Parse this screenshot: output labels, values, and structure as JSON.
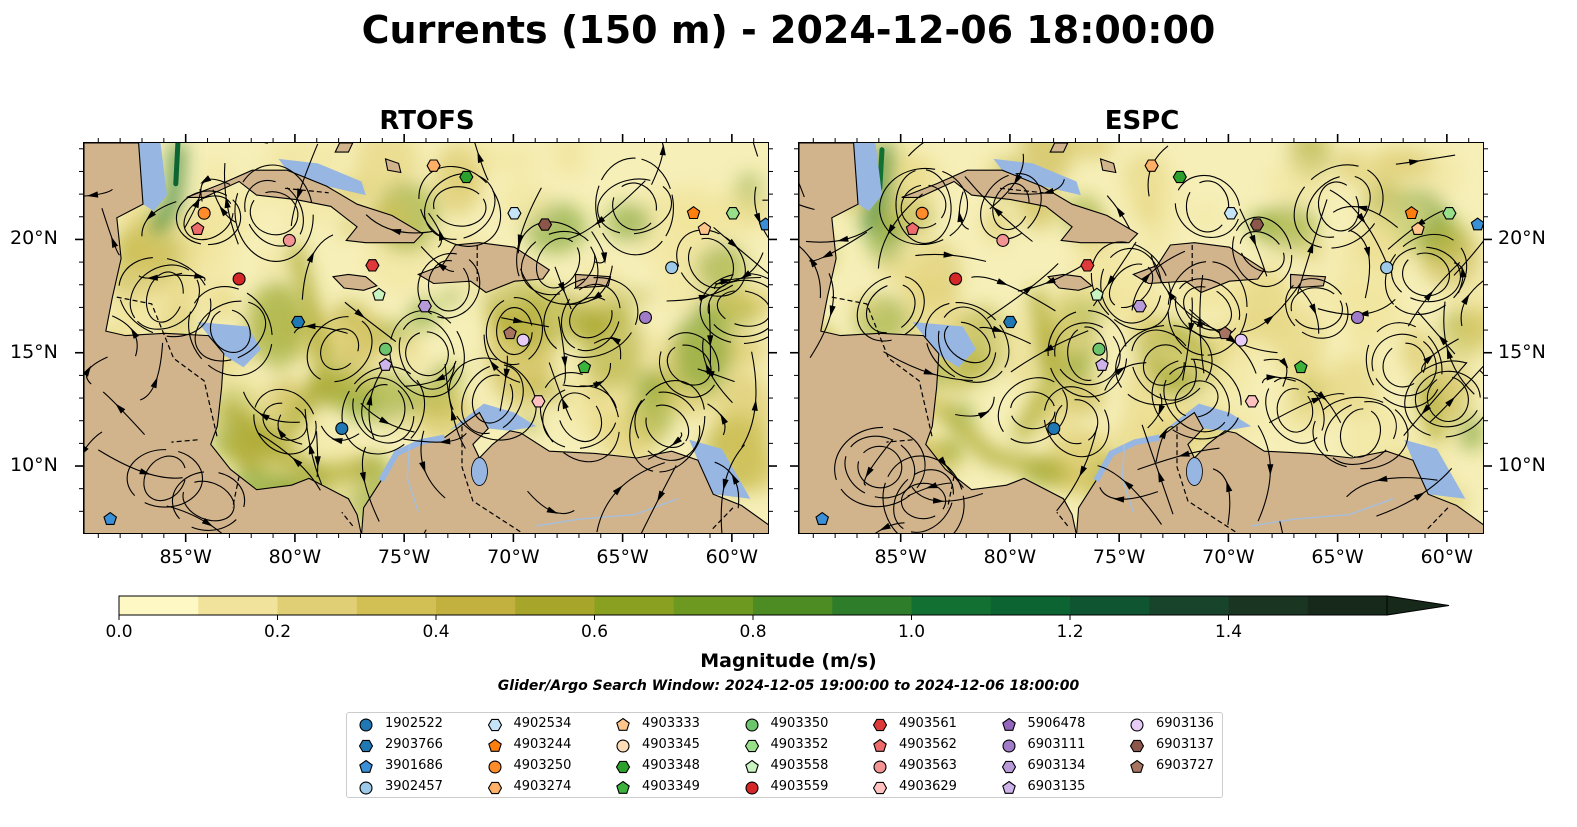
{
  "title": "Currents (150 m) - 2024-12-06 18:00:00",
  "panels": [
    {
      "title": "RTOFS"
    },
    {
      "title": "ESPC"
    }
  ],
  "axes": {
    "lon_ticks": [
      "85°W",
      "80°W",
      "75°W",
      "70°W",
      "65°W",
      "60°W"
    ],
    "lat_ticks": [
      "20°N",
      "15°N",
      "10°N"
    ],
    "lon_range": [
      -89.7,
      -58.3
    ],
    "lat_range": [
      7.0,
      24.3
    ]
  },
  "colorbar": {
    "title": "Magnitude (m/s)",
    "ticks": [
      "0.0",
      "0.2",
      "0.4",
      "0.6",
      "0.8",
      "1.0",
      "1.2",
      "1.4"
    ],
    "range": [
      0,
      1.6
    ],
    "extend": "max",
    "colors": [
      "#fdf8c4",
      "#f1e39b",
      "#e1cf75",
      "#d3c055",
      "#c3b13f",
      "#a7a62a",
      "#8aa020",
      "#6d9920",
      "#4d8c22",
      "#2e7d2a",
      "#137033",
      "#0c6433",
      "#0f5531",
      "#18442b",
      "#1a3622",
      "#16291a"
    ]
  },
  "colors": {
    "ocean_low": "#f6efb8",
    "land": "#d2b48c",
    "shallow_water": "#97b6e1"
  },
  "search_window": "Glider/Argo Search Window: 2024-12-05 19:00:00 to 2024-12-06 18:00:00",
  "legend": [
    {
      "id": "1902522",
      "color": "#1f77b4",
      "shape": "circle"
    },
    {
      "id": "2903766",
      "color": "#1f77b4",
      "shape": "hexagon"
    },
    {
      "id": "3901686",
      "color": "#3a8fd6",
      "shape": "pentagon"
    },
    {
      "id": "3902457",
      "color": "#9ecae9",
      "shape": "circle"
    },
    {
      "id": "4902534",
      "color": "#c6e4f8",
      "shape": "hexagon"
    },
    {
      "id": "4903244",
      "color": "#ff7f0e",
      "shape": "pentagon"
    },
    {
      "id": "4903250",
      "color": "#ff8c2a",
      "shape": "circle"
    },
    {
      "id": "4903274",
      "color": "#ffb067",
      "shape": "hexagon"
    },
    {
      "id": "4903333",
      "color": "#ffc58a",
      "shape": "pentagon"
    },
    {
      "id": "4903345",
      "color": "#ffdcb8",
      "shape": "circle"
    },
    {
      "id": "4903348",
      "color": "#2ca02c",
      "shape": "hexagon"
    },
    {
      "id": "4903349",
      "color": "#3cb43c",
      "shape": "pentagon"
    },
    {
      "id": "4903350",
      "color": "#6cc46c",
      "shape": "circle"
    },
    {
      "id": "4903352",
      "color": "#98df8a",
      "shape": "hexagon"
    },
    {
      "id": "4903558",
      "color": "#c9f3c0",
      "shape": "pentagon"
    },
    {
      "id": "4903559",
      "color": "#d62728",
      "shape": "circle"
    },
    {
      "id": "4903561",
      "color": "#e0393a",
      "shape": "hexagon"
    },
    {
      "id": "4903562",
      "color": "#ee6b6b",
      "shape": "pentagon"
    },
    {
      "id": "4903563",
      "color": "#f39494",
      "shape": "circle"
    },
    {
      "id": "4903629",
      "color": "#ffc0c0",
      "shape": "hexagon"
    },
    {
      "id": "5906478",
      "color": "#9467bd",
      "shape": "pentagon"
    },
    {
      "id": "6903111",
      "color": "#a07cc8",
      "shape": "circle"
    },
    {
      "id": "6903134",
      "color": "#b89ad8",
      "shape": "hexagon"
    },
    {
      "id": "6903135",
      "color": "#cdb3ea",
      "shape": "pentagon"
    },
    {
      "id": "6903136",
      "color": "#e6ccf7",
      "shape": "circle"
    },
    {
      "id": "6903137",
      "color": "#8c564b",
      "shape": "hexagon"
    },
    {
      "id": "6903727",
      "color": "#a87462",
      "shape": "pentagon"
    }
  ],
  "floats": [
    {
      "id": "3901686",
      "lon": -88.5,
      "lat": 7.7
    },
    {
      "id": "4903562",
      "lon": -84.5,
      "lat": 20.5
    },
    {
      "id": "4903250",
      "lon": -84.2,
      "lat": 21.2
    },
    {
      "id": "4903563",
      "lon": -80.3,
      "lat": 20.0
    },
    {
      "id": "4903559",
      "lon": -82.6,
      "lat": 18.3
    },
    {
      "id": "2903766",
      "lon": -79.9,
      "lat": 16.4
    },
    {
      "id": "4903561",
      "lon": -76.5,
      "lat": 18.9
    },
    {
      "id": "4903558",
      "lon": -76.2,
      "lat": 17.6
    },
    {
      "id": "4903350",
      "lon": -75.9,
      "lat": 15.2
    },
    {
      "id": "6903135",
      "lon": -75.9,
      "lat": 14.5
    },
    {
      "id": "1902522",
      "lon": -77.9,
      "lat": 11.7
    },
    {
      "id": "6903134",
      "lon": -74.1,
      "lat": 17.1
    },
    {
      "id": "4903274",
      "lon": -73.7,
      "lat": 23.3
    },
    {
      "id": "4903348",
      "lon": -72.2,
      "lat": 22.8
    },
    {
      "id": "4902534",
      "lon": -70.0,
      "lat": 21.2
    },
    {
      "id": "6903137",
      "lon": -68.6,
      "lat": 20.7
    },
    {
      "id": "6903727",
      "lon": -70.2,
      "lat": 15.9
    },
    {
      "id": "6903136",
      "lon": -69.6,
      "lat": 15.6
    },
    {
      "id": "4903629",
      "lon": -68.9,
      "lat": 12.9
    },
    {
      "id": "4903349",
      "lon": -66.8,
      "lat": 14.4
    },
    {
      "id": "6903111",
      "lon": -64.0,
      "lat": 16.6
    },
    {
      "id": "3902457",
      "lon": -62.8,
      "lat": 18.8
    },
    {
      "id": "4903244",
      "lon": -61.8,
      "lat": 21.2
    },
    {
      "id": "4903333",
      "lon": -61.3,
      "lat": 20.5
    },
    {
      "id": "4903352",
      "lon": -60.0,
      "lat": 21.2
    },
    {
      "id": "3901686",
      "lon": -58.5,
      "lat": 20.7
    }
  ]
}
